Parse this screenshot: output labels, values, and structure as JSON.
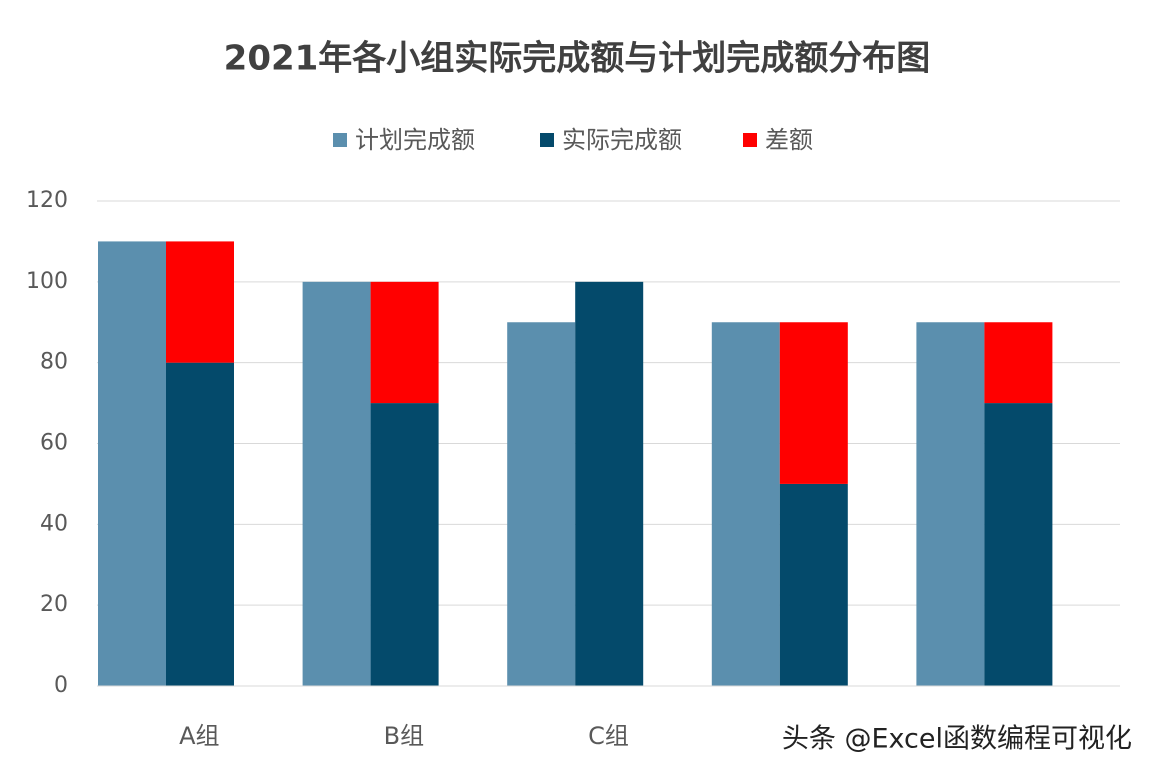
{
  "chart_data": {
    "type": "bar",
    "title": "2021年各小组实际完成额与计划完成额分布图",
    "categories": [
      "A组",
      "B组",
      "C组",
      null,
      null
    ],
    "series": [
      {
        "name": "计划完成额",
        "color": "#5b8fae",
        "values": [
          110,
          100,
          90,
          90,
          90
        ]
      },
      {
        "name": "实际完成额",
        "color": "#044a6b",
        "values": [
          80,
          70,
          100,
          50,
          70
        ]
      },
      {
        "name": "差额",
        "color": "#ff0000",
        "values": [
          30,
          30,
          0,
          40,
          20
        ]
      }
    ],
    "ylim": [
      0,
      120
    ],
    "yticks": [
      0,
      20,
      40,
      60,
      80,
      100,
      120
    ],
    "grid": true,
    "watermark": "头条 @Excel函数编程可视化"
  }
}
